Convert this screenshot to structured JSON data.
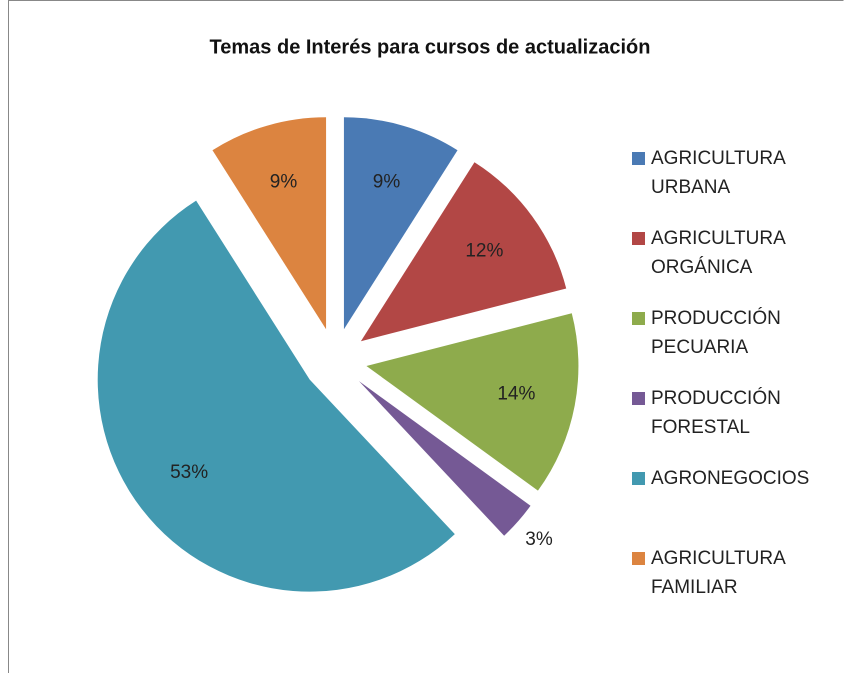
{
  "chart_data": {
    "type": "pie",
    "title": "Temas de Interés para cursos de actualización",
    "categories": [
      "AGRICULTURA URBANA",
      "AGRICULTURA ORGÁNICA",
      "PRODUCCIÓN PECUARIA",
      "PRODUCCIÓN FORESTAL",
      "AGRONEGOCIOS",
      "AGRICULTURA FAMILIAR"
    ],
    "values": [
      9,
      12,
      14,
      3,
      53,
      9
    ],
    "value_labels": [
      "9%",
      "12%",
      "14%",
      "3%",
      "53%",
      "9%"
    ],
    "colors": [
      "#4a7ab4",
      "#b24745",
      "#8eab4c",
      "#755995",
      "#4299b0",
      "#dc8440"
    ],
    "exploded": true,
    "legend": "right"
  }
}
